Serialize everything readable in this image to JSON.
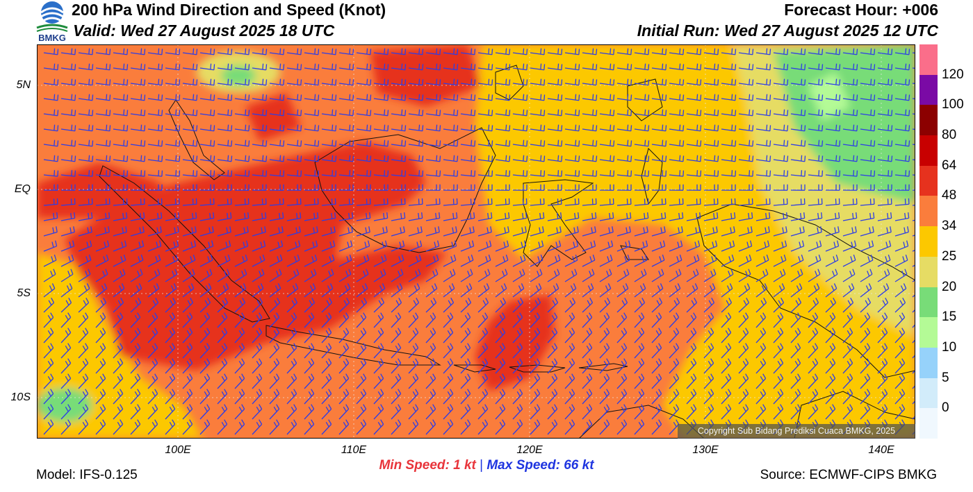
{
  "header": {
    "title": "200 hPa Wind Direction and Speed (Knot)",
    "valid": "Valid: Wed 27 August 2025 18 UTC",
    "forecast_hour": "Forecast Hour: +006",
    "initial_run": "Initial Run: Wed 27 August 2025 12 UTC",
    "logo_text": "BMKG"
  },
  "axes": {
    "y_ticks": [
      "5N",
      "EQ",
      "5S",
      "10S"
    ],
    "x_ticks": [
      "100E",
      "110E",
      "120E",
      "130E",
      "140E"
    ]
  },
  "colorbar": {
    "labels": [
      "120",
      "100",
      "80",
      "64",
      "48",
      "34",
      "25",
      "20",
      "15",
      "10",
      "5",
      "0"
    ],
    "colors": [
      "#fa6e8a",
      "#7a0aa5",
      "#8c0000",
      "#c80000",
      "#e6321e",
      "#fa7d3c",
      "#fcc800",
      "#e6dc64",
      "#78dc78",
      "#b4fa96",
      "#96d2fa",
      "#d2ecfa",
      "#f0f8fe"
    ]
  },
  "speeds": {
    "min": "Min Speed:   1 kt",
    "max": "Max Speed:  66 kt",
    "separator": "|"
  },
  "footer": {
    "model": "Model: IFS-0.125",
    "source": "Source: ECMWF-CIPS BMKG"
  },
  "copyright": "Copyright Sub Bidang Prediksi Cuaca BMKG, 2025"
}
